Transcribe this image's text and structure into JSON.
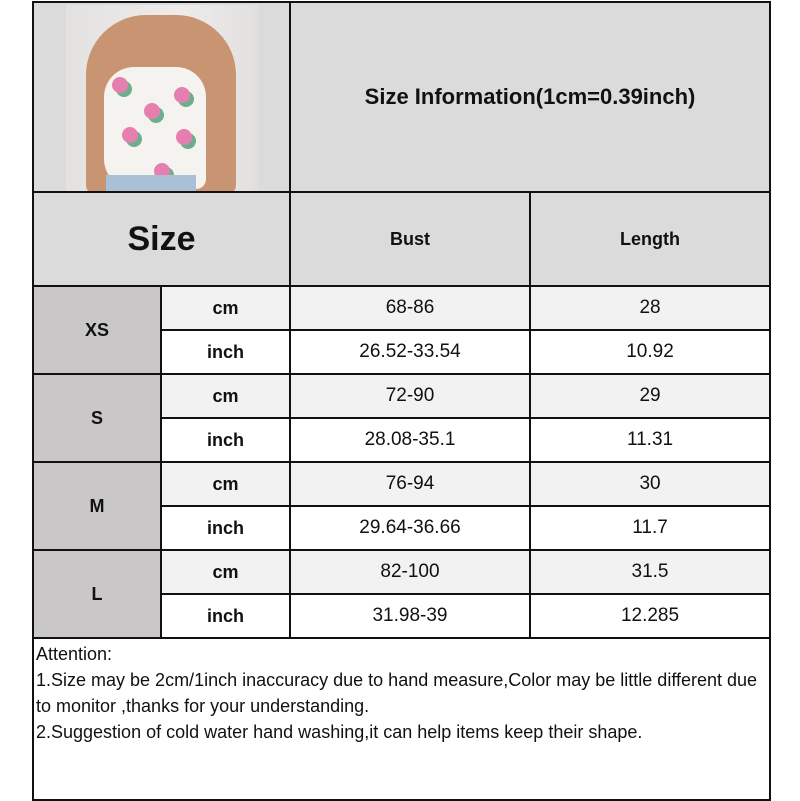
{
  "header": {
    "title": "Size Information(1cm=0.39inch)",
    "size_label": "Size",
    "columns": [
      "Bust",
      "Length"
    ]
  },
  "rows": [
    {
      "size": "XS",
      "cm": {
        "unit": "cm",
        "bust": "68-86",
        "length": "28"
      },
      "inch": {
        "unit": "inch",
        "bust": "26.52-33.54",
        "length": "10.92"
      }
    },
    {
      "size": "S",
      "cm": {
        "unit": "cm",
        "bust": "72-90",
        "length": "29"
      },
      "inch": {
        "unit": "inch",
        "bust": "28.08-35.1",
        "length": "11.31"
      }
    },
    {
      "size": "M",
      "cm": {
        "unit": "cm",
        "bust": "76-94",
        "length": "30"
      },
      "inch": {
        "unit": "inch",
        "bust": "29.64-36.66",
        "length": "11.7"
      }
    },
    {
      "size": "L",
      "cm": {
        "unit": "cm",
        "bust": "82-100",
        "length": "31.5"
      },
      "inch": {
        "unit": "inch",
        "bust": "31.98-39",
        "length": "12.285"
      }
    }
  ],
  "notes": {
    "heading": "Attention:",
    "line1": "1.Size may be 2cm/1inch inaccuracy due to hand measure,Color may be little different due to monitor ,thanks for your understanding.",
    "line2": "2.Suggestion of cold water hand washing,it can help items keep their shape."
  },
  "colors": {
    "header_bg": "#dcdbdc",
    "size_bg": "#c9c7c7",
    "cm_row_bg": "#f2f2f2",
    "inch_row_bg": "#ffffff"
  }
}
